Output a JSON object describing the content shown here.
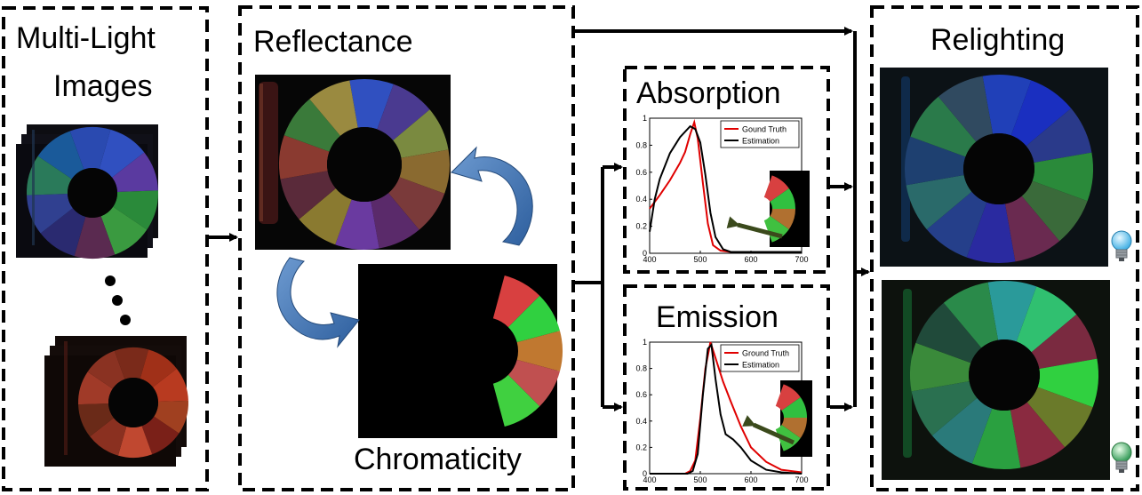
{
  "panels": {
    "input_title_line1": "Multi-Light",
    "input_title_line2": "Images",
    "reflectance_title": "Reflectance",
    "chromaticity_title": "Chromaticity",
    "absorption_title": "Absorption",
    "emission_title": "Emission",
    "relighting_title": "Relighting"
  },
  "chart_data": [
    {
      "type": "line",
      "title": "",
      "xlabel": "",
      "ylabel": "",
      "xlim": [
        400,
        700
      ],
      "ylim": [
        0,
        1
      ],
      "xticks": [
        400,
        500,
        600,
        700
      ],
      "yticks": [
        0,
        0.2,
        0.4,
        0.6,
        0.8,
        1
      ],
      "legend": "top-right",
      "series": [
        {
          "name": "Gound Truth",
          "color": "#e00000",
          "x": [
            400,
            420,
            440,
            460,
            470,
            480,
            488,
            495,
            505,
            515,
            525,
            540,
            560,
            600,
            650,
            700
          ],
          "y": [
            0.33,
            0.43,
            0.54,
            0.67,
            0.75,
            0.88,
            0.97,
            0.85,
            0.52,
            0.22,
            0.06,
            0.02,
            0.01,
            0.01,
            0.01,
            0.01
          ]
        },
        {
          "name": "Estimation",
          "color": "#000000",
          "x": [
            400,
            410,
            420,
            440,
            460,
            480,
            490,
            500,
            510,
            520,
            530,
            545,
            560,
            600,
            650,
            700
          ],
          "y": [
            0.16,
            0.4,
            0.55,
            0.74,
            0.86,
            0.94,
            0.92,
            0.82,
            0.58,
            0.3,
            0.12,
            0.03,
            0.01,
            0.01,
            0.01,
            0.01
          ]
        }
      ]
    },
    {
      "type": "line",
      "title": "",
      "xlabel": "",
      "ylabel": "",
      "xlim": [
        400,
        700
      ],
      "ylim": [
        0,
        1
      ],
      "xticks": [
        400,
        500,
        600,
        700
      ],
      "yticks": [
        0,
        0.2,
        0.4,
        0.6,
        0.8,
        1
      ],
      "legend": "top-right",
      "series": [
        {
          "name": "Ground Truth",
          "color": "#e00000",
          "x": [
            400,
            470,
            480,
            490,
            500,
            510,
            520,
            530,
            545,
            560,
            580,
            600,
            630,
            660,
            700
          ],
          "y": [
            0,
            0,
            0.02,
            0.1,
            0.42,
            0.8,
            1.0,
            0.88,
            0.7,
            0.55,
            0.36,
            0.2,
            0.09,
            0.03,
            0.01
          ]
        },
        {
          "name": "Estimation",
          "color": "#000000",
          "x": [
            400,
            475,
            485,
            495,
            505,
            515,
            522,
            530,
            540,
            550,
            565,
            580,
            600,
            630,
            660,
            700
          ],
          "y": [
            0,
            0,
            0.02,
            0.15,
            0.6,
            0.95,
            0.98,
            0.72,
            0.45,
            0.3,
            0.26,
            0.2,
            0.1,
            0.03,
            0.01,
            0.0
          ]
        }
      ]
    }
  ]
}
